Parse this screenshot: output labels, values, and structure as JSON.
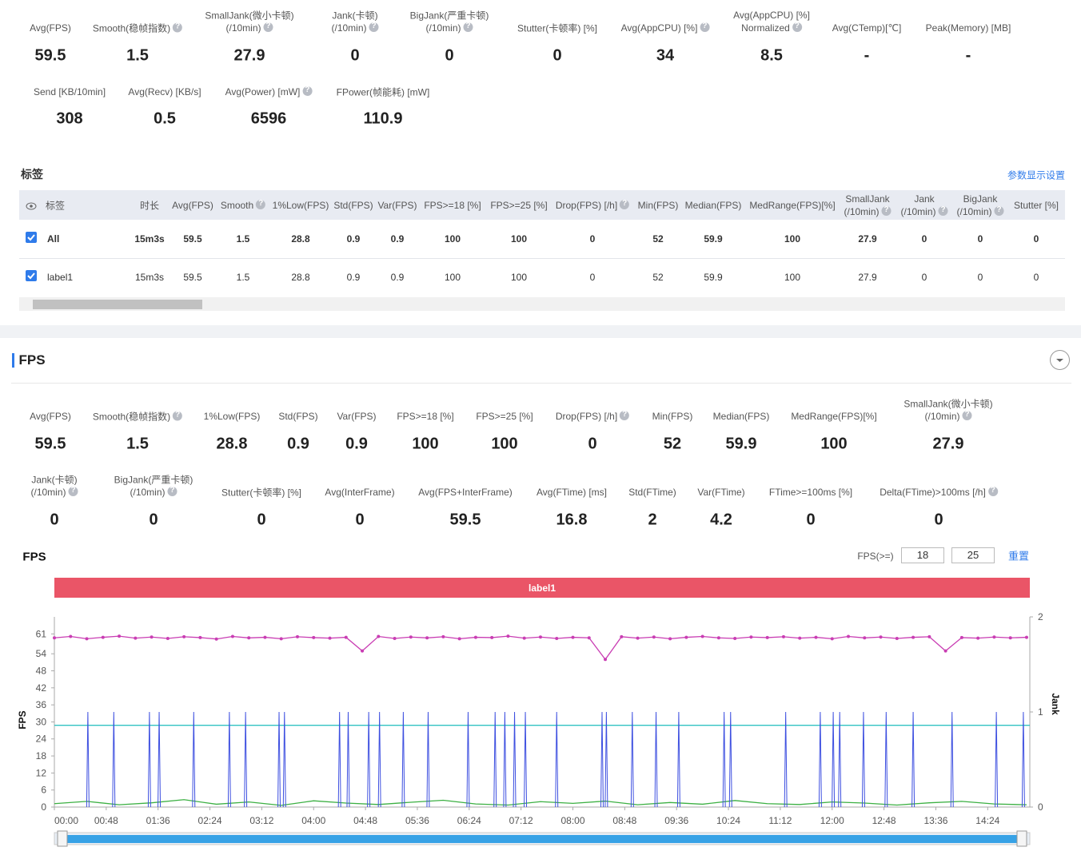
{
  "summary": [
    {
      "label": [
        "Avg(FPS)"
      ],
      "value": "59.5"
    },
    {
      "label": [
        "Smooth(稳帧指数)"
      ],
      "help": true,
      "value": "1.5"
    },
    {
      "label": [
        "SmallJank(微小卡顿)",
        "(/10min)"
      ],
      "help": true,
      "value": "27.9"
    },
    {
      "label": [
        "Jank(卡顿)",
        "(/10min)"
      ],
      "help": true,
      "value": "0"
    },
    {
      "label": [
        "BigJank(严重卡顿)",
        "(/10min)"
      ],
      "help": true,
      "value": "0"
    },
    {
      "label": [
        "Stutter(卡顿率) [%]"
      ],
      "value": "0"
    },
    {
      "label": [
        "Avg(AppCPU) [%]"
      ],
      "help": true,
      "value": "34"
    },
    {
      "label": [
        "Avg(AppCPU) [%]",
        "Normalized"
      ],
      "help": true,
      "value": "8.5"
    },
    {
      "label": [
        "Avg(CTemp)[℃]"
      ],
      "value": "-"
    },
    {
      "label": [
        "Peak(Memory) [MB]"
      ],
      "value": "-"
    },
    {
      "label": [
        "Send [KB/10min]"
      ],
      "value": "308"
    },
    {
      "label": [
        "Avg(Recv) [KB/s]"
      ],
      "value": "0.5"
    },
    {
      "label": [
        "Avg(Power) [mW]"
      ],
      "help": true,
      "value": "6596"
    },
    {
      "label": [
        "FPower(帧能耗) [mW]"
      ],
      "value": "110.9"
    }
  ],
  "tags": {
    "title": "标签",
    "settings_link": "参数显示设置",
    "headers": [
      [
        "标签"
      ],
      [
        "时长"
      ],
      [
        "Avg(FPS)"
      ],
      [
        "Smooth"
      ],
      [
        "1%Low(FPS)"
      ],
      [
        "Std(FPS)"
      ],
      [
        "Var(FPS)"
      ],
      [
        "FPS>=18 [%]"
      ],
      [
        "FPS>=25 [%]"
      ],
      [
        "Drop(FPS) [/h]"
      ],
      [
        "Min(FPS)"
      ],
      [
        "Median(FPS)"
      ],
      [
        "MedRange(FPS)[%]"
      ],
      [
        "SmallJank",
        "(/10min)"
      ],
      [
        "Jank",
        "(/10min)"
      ],
      [
        "BigJank",
        "(/10min)"
      ],
      [
        "Stutter [%]"
      ]
    ],
    "help_columns": [
      3,
      9,
      13,
      14,
      15
    ],
    "rows": [
      {
        "checked": true,
        "bold": true,
        "cells": [
          "All",
          "15m3s",
          "59.5",
          "1.5",
          "28.8",
          "0.9",
          "0.9",
          "100",
          "100",
          "0",
          "52",
          "59.9",
          "100",
          "27.9",
          "0",
          "0",
          "0"
        ]
      },
      {
        "checked": true,
        "bold": false,
        "cells": [
          "label1",
          "15m3s",
          "59.5",
          "1.5",
          "28.8",
          "0.9",
          "0.9",
          "100",
          "100",
          "0",
          "52",
          "59.9",
          "100",
          "27.9",
          "0",
          "0",
          "0"
        ]
      }
    ]
  },
  "fps_section": {
    "title": "FPS",
    "metrics": [
      {
        "label": [
          "Avg(FPS)"
        ],
        "value": "59.5"
      },
      {
        "label": [
          "Smooth(稳帧指数)"
        ],
        "help": true,
        "value": "1.5"
      },
      {
        "label": [
          "1%Low(FPS)"
        ],
        "value": "28.8"
      },
      {
        "label": [
          "Std(FPS)"
        ],
        "value": "0.9"
      },
      {
        "label": [
          "Var(FPS)"
        ],
        "value": "0.9"
      },
      {
        "label": [
          "FPS>=18 [%]"
        ],
        "value": "100"
      },
      {
        "label": [
          "FPS>=25 [%]"
        ],
        "value": "100"
      },
      {
        "label": [
          "Drop(FPS) [/h]"
        ],
        "help": true,
        "value": "0"
      },
      {
        "label": [
          "Min(FPS)"
        ],
        "value": "52"
      },
      {
        "label": [
          "Median(FPS)"
        ],
        "value": "59.9"
      },
      {
        "label": [
          "MedRange(FPS)[%]"
        ],
        "value": "100"
      },
      {
        "label": [
          "SmallJank(微小卡顿)",
          "(/10min)"
        ],
        "help": true,
        "value": "27.9"
      },
      {
        "label": [
          "Jank(卡顿)",
          "(/10min)"
        ],
        "help": true,
        "value": "0"
      },
      {
        "label": [
          "BigJank(严重卡顿)",
          "(/10min)"
        ],
        "help": true,
        "value": "0"
      },
      {
        "label": [
          "Stutter(卡顿率) [%]"
        ],
        "value": "0"
      },
      {
        "label": [
          "Avg(InterFrame)"
        ],
        "value": "0"
      },
      {
        "label": [
          "Avg(FPS+InterFrame)"
        ],
        "value": "59.5"
      },
      {
        "label": [
          "Avg(FTime) [ms]"
        ],
        "value": "16.8"
      },
      {
        "label": [
          "Std(FTime)"
        ],
        "value": "2"
      },
      {
        "label": [
          "Var(FTime)"
        ],
        "value": "4.2"
      },
      {
        "label": [
          "FTime>=100ms [%]"
        ],
        "value": "0"
      },
      {
        "label": [
          "Delta(FTime)>100ms [/h]"
        ],
        "help": true,
        "value": "0"
      }
    ]
  },
  "chart_data": {
    "type": "line",
    "title": "FPS",
    "threshold_label": "FPS(>=)",
    "thresholds": [
      18,
      25
    ],
    "reset": "重置",
    "band_label": "label1",
    "ylabel": "FPS",
    "y2label": "Jank",
    "x": [
      0,
      15,
      30,
      45,
      60,
      75,
      90,
      105,
      120,
      135,
      150,
      165,
      180,
      195,
      210,
      225,
      240,
      255,
      270,
      285,
      300,
      315,
      330,
      345,
      360,
      375,
      390,
      405,
      420,
      435,
      450,
      465,
      480,
      495,
      510,
      525,
      540,
      555,
      570,
      585,
      600,
      615,
      630,
      645,
      660,
      675,
      690,
      705,
      720,
      735,
      750,
      765,
      780,
      795,
      810,
      825,
      840,
      855,
      870,
      885,
      900
    ],
    "xlim": [
      0,
      903
    ],
    "xticks": [
      {
        "value": 0,
        "label": "00:00"
      },
      {
        "value": 48,
        "label": "00:48"
      },
      {
        "value": 96,
        "label": "01:36"
      },
      {
        "value": 144,
        "label": "02:24"
      },
      {
        "value": 192,
        "label": "03:12"
      },
      {
        "value": 240,
        "label": "04:00"
      },
      {
        "value": 288,
        "label": "04:48"
      },
      {
        "value": 336,
        "label": "05:36"
      },
      {
        "value": 384,
        "label": "06:24"
      },
      {
        "value": 432,
        "label": "07:12"
      },
      {
        "value": 480,
        "label": "08:00"
      },
      {
        "value": 528,
        "label": "08:48"
      },
      {
        "value": 576,
        "label": "09:36"
      },
      {
        "value": 624,
        "label": "10:24"
      },
      {
        "value": 672,
        "label": "11:12"
      },
      {
        "value": 720,
        "label": "12:00"
      },
      {
        "value": 768,
        "label": "12:48"
      },
      {
        "value": 816,
        "label": "13:36"
      },
      {
        "value": 864,
        "label": "14:24"
      }
    ],
    "ylim": [
      0,
      67
    ],
    "yticks": [
      0,
      6,
      12,
      18,
      24,
      30,
      36,
      42,
      48,
      54,
      61
    ],
    "y2lim": [
      0,
      2
    ],
    "y2ticks": [
      0,
      1,
      2
    ],
    "series": [
      {
        "color": "#c93db3",
        "markers": true,
        "values": [
          59.6,
          60.1,
          59.3,
          59.8,
          60.2,
          59.5,
          59.9,
          59.4,
          60.0,
          59.7,
          59.2,
          60.1,
          59.6,
          59.8,
          59.3,
          60.0,
          59.7,
          59.5,
          59.8,
          55.0,
          60.1,
          59.4,
          59.9,
          59.6,
          60.0,
          59.3,
          59.8,
          59.7,
          60.2,
          59.5,
          59.9,
          59.4,
          59.8,
          59.6,
          52.0,
          60.0,
          59.5,
          59.9,
          59.3,
          59.8,
          60.1,
          59.6,
          59.4,
          59.9,
          59.7,
          60.0,
          59.5,
          59.8,
          59.3,
          60.1,
          59.6,
          59.9,
          59.4,
          59.8,
          60.0,
          55.0,
          59.7,
          59.5,
          59.9,
          59.6,
          59.8
        ]
      },
      {
        "color": "#33c2c2",
        "x": [
          0,
          903
        ],
        "values": [
          28.8,
          28.8
        ]
      },
      {
        "color": "#3cb043",
        "x": [
          0,
          30,
          60,
          90,
          120,
          150,
          180,
          210,
          240,
          270,
          300,
          330,
          360,
          390,
          420,
          450,
          480,
          510,
          540,
          570,
          600,
          630,
          660,
          690,
          720,
          750,
          780,
          810,
          840,
          870,
          900
        ],
        "values": [
          1.2,
          2.0,
          0.8,
          1.5,
          2.6,
          1.0,
          1.8,
          0.6,
          2.2,
          1.4,
          0.9,
          1.7,
          2.4,
          1.1,
          0.7,
          1.9,
          1.3,
          2.1,
          0.8,
          1.6,
          1.0,
          2.3,
          1.2,
          0.9,
          1.8,
          1.4,
          0.7,
          1.5,
          2.0,
          1.1,
          0.8
        ]
      },
      {
        "color": "#3d4fe0",
        "axis": "y2",
        "spikes": true,
        "x": [
          31,
          55,
          88,
          97,
          129,
          162,
          177,
          208,
          213,
          264,
          272,
          291,
          301,
          323,
          346,
          383,
          408,
          417,
          426,
          436,
          465,
          507,
          511,
          535,
          557,
          578,
          620,
          626,
          677,
          709,
          721,
          727,
          749,
          770,
          795,
          831,
          872,
          897
        ],
        "values": [
          1,
          1,
          1,
          1,
          1,
          1,
          1,
          1,
          1,
          1,
          1,
          1,
          1,
          1,
          1,
          1,
          1,
          1,
          1,
          1,
          1,
          1,
          1,
          1,
          1,
          1,
          1,
          1,
          1,
          1,
          1,
          1,
          1,
          1,
          1,
          1,
          1,
          1
        ]
      }
    ]
  }
}
